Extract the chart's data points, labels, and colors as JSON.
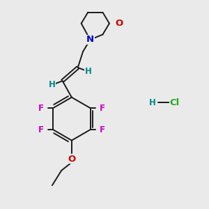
{
  "bg_color": "#eaeaea",
  "bond_color": "#1a1a1a",
  "bond_width": 1.4,
  "atoms": {
    "N": {
      "color": "#0000cc",
      "fontsize": 9.5,
      "fontweight": "bold"
    },
    "O_morph": {
      "color": "#cc0000",
      "fontsize": 9.5,
      "fontweight": "bold"
    },
    "O_ethoxy": {
      "color": "#cc0000",
      "fontsize": 9.5,
      "fontweight": "bold"
    },
    "F": {
      "color": "#cc00cc",
      "fontsize": 8.5,
      "fontweight": "bold"
    },
    "H": {
      "color": "#008888",
      "fontsize": 8.5,
      "fontweight": "bold"
    },
    "Cl": {
      "color": "#22aa22",
      "fontsize": 9.5,
      "fontweight": "bold"
    }
  },
  "figsize": [
    3.0,
    3.0
  ],
  "dpi": 100
}
